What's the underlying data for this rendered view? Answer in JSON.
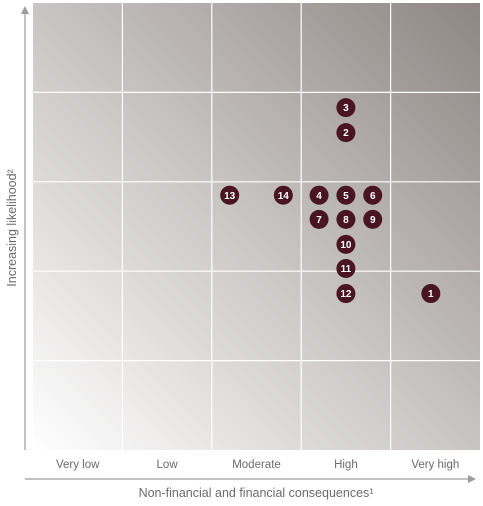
{
  "chart_data": {
    "type": "scatter",
    "title": "",
    "xlabel": "Non-financial and financial consequences¹",
    "ylabel": "Increasing likelihood²",
    "x_categories": [
      "Very low",
      "Low",
      "Moderate",
      "High",
      "Very high"
    ],
    "x_range": [
      0,
      5
    ],
    "y_range": [
      0,
      5
    ],
    "grid": true,
    "legend": "none",
    "colors": {
      "marker": "#4a1523",
      "marker_text": "#ffffff",
      "gridline": "#ffffff",
      "axis": "#a09a9a",
      "text": "#6b6b6b"
    },
    "points": [
      {
        "label": "1",
        "x": 4.45,
        "y": 1.75
      },
      {
        "label": "2",
        "x": 3.5,
        "y": 3.55
      },
      {
        "label": "3",
        "x": 3.5,
        "y": 3.83
      },
      {
        "label": "4",
        "x": 3.2,
        "y": 2.85
      },
      {
        "label": "5",
        "x": 3.5,
        "y": 2.85
      },
      {
        "label": "6",
        "x": 3.8,
        "y": 2.85
      },
      {
        "label": "7",
        "x": 3.2,
        "y": 2.58
      },
      {
        "label": "8",
        "x": 3.5,
        "y": 2.58
      },
      {
        "label": "9",
        "x": 3.8,
        "y": 2.58
      },
      {
        "label": "10",
        "x": 3.5,
        "y": 2.3
      },
      {
        "label": "11",
        "x": 3.5,
        "y": 2.03
      },
      {
        "label": "12",
        "x": 3.5,
        "y": 1.75
      },
      {
        "label": "13",
        "x": 2.2,
        "y": 2.85
      },
      {
        "label": "14",
        "x": 2.8,
        "y": 2.85
      }
    ]
  }
}
